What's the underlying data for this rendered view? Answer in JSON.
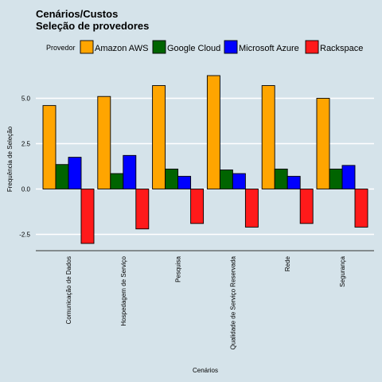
{
  "chart_data": {
    "type": "bar",
    "title": "Cenários/Custos",
    "subtitle": "Seleção de provedores",
    "xlabel": "Cenários",
    "ylabel": "Frequência de Seleção",
    "legend_title": "Provedor",
    "legend_position": "top",
    "grid": true,
    "ylim": [
      -3.4,
      6.3
    ],
    "yticks": [
      -2.5,
      0.0,
      2.5,
      5.0
    ],
    "ytick_labels": [
      "-2.5",
      "0.0",
      "2.5",
      "5.0"
    ],
    "categories": [
      "Comunicação de Dados",
      "Hospedagem de Serviço",
      "Pesquisa",
      "Qualidade de Serviço Reservada",
      "Rede",
      "Segurança"
    ],
    "series": [
      {
        "name": "Amazon AWS",
        "color": "#FFA500",
        "values": [
          4.6,
          5.1,
          5.7,
          6.25,
          5.7,
          5.0
        ]
      },
      {
        "name": "Google Cloud",
        "color": "#006400",
        "values": [
          1.35,
          0.85,
          1.1,
          1.05,
          1.1,
          1.1
        ]
      },
      {
        "name": "Microsoft Azure",
        "color": "#0000FF",
        "values": [
          1.75,
          1.85,
          0.7,
          0.85,
          0.7,
          1.3
        ]
      },
      {
        "name": "Rackspace",
        "color": "#FF1A1A",
        "values": [
          -3.0,
          -2.2,
          -1.9,
          -2.1,
          -1.9,
          -2.1
        ]
      }
    ]
  }
}
